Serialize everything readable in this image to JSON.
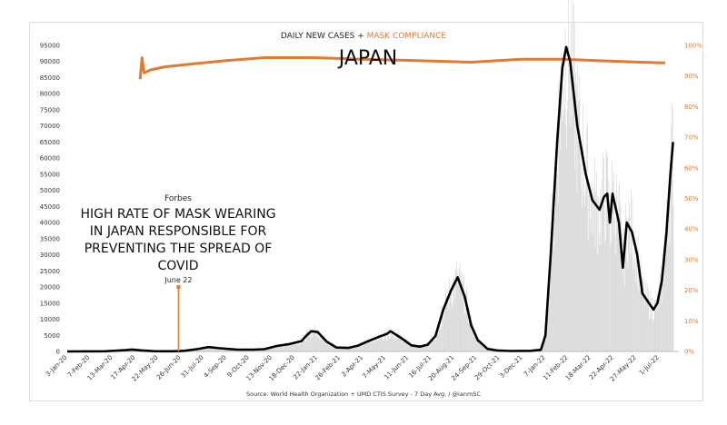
{
  "chart_data": {
    "type": "line",
    "title_main": "DAILY NEW CASES + ",
    "title_accent": "MASK COMPLIANCE",
    "country": "JAPAN",
    "source": "Source: World Health Organization + UMD CTIS Survey - 7 Day Avg. / @ianmSC",
    "left_axis": {
      "min": 0,
      "max": 95000,
      "step": 5000
    },
    "right_axis": {
      "min": 0,
      "max": 100,
      "step": 10,
      "unit": "%"
    },
    "x_axis": {
      "start": "2020-01-03",
      "end": "2022-07-31",
      "tick_labels": [
        "3-Jan-20",
        "7-Feb-20",
        "13-Mar-20",
        "17-Apr-20",
        "22-May-20",
        "26-Jun-20",
        "31-Jul-20",
        "4-Sep-20",
        "9-Oct-20",
        "13-Nov-20",
        "18-Dec-20",
        "22-Jan-21",
        "26-Feb-21",
        "2-Apr-21",
        "7-May-21",
        "11-Jun-21",
        "16-Jul-21",
        "20-Aug-21",
        "24-Sep-21",
        "29-Oct-21",
        "3-Dec-21",
        "7-Jan-22",
        "11-Feb-22",
        "18-Mar-22",
        "22-Apr-22",
        "27-May-22",
        "1-Jul-22"
      ]
    },
    "annotation": {
      "source_label": "Forbes",
      "headline_lines": [
        "HIGH RATE OF MASK WEARING",
        "IN JAPAN RESPONSIBLE FOR",
        "PREVENTING THE SPREAD OF",
        "COVID"
      ],
      "date_label": "June 22",
      "date": "2020-06-22"
    },
    "colors": {
      "cases": "#000000",
      "mask": "#e07b30",
      "bars": "#d9d9d9",
      "marker": "#e07b30",
      "axis_text": "#333333"
    },
    "series": [
      {
        "name": "DAILY NEW CASES",
        "axis": "left",
        "points": [
          [
            "2020-01-03",
            0
          ],
          [
            "2020-03-01",
            50
          ],
          [
            "2020-04-01",
            400
          ],
          [
            "2020-04-12",
            600
          ],
          [
            "2020-04-25",
            350
          ],
          [
            "2020-05-15",
            80
          ],
          [
            "2020-06-15",
            60
          ],
          [
            "2020-07-01",
            200
          ],
          [
            "2020-07-20",
            700
          ],
          [
            "2020-08-07",
            1350
          ],
          [
            "2020-08-25",
            1000
          ],
          [
            "2020-09-20",
            550
          ],
          [
            "2020-10-15",
            550
          ],
          [
            "2020-11-01",
            700
          ],
          [
            "2020-11-20",
            1700
          ],
          [
            "2020-12-10",
            2300
          ],
          [
            "2020-12-28",
            3200
          ],
          [
            "2021-01-05",
            5000
          ],
          [
            "2021-01-12",
            6300
          ],
          [
            "2021-01-22",
            6000
          ],
          [
            "2021-02-05",
            3000
          ],
          [
            "2021-02-20",
            1200
          ],
          [
            "2021-03-10",
            1100
          ],
          [
            "2021-03-25",
            1800
          ],
          [
            "2021-04-10",
            3200
          ],
          [
            "2021-04-28",
            4700
          ],
          [
            "2021-05-08",
            5400
          ],
          [
            "2021-05-14",
            6300
          ],
          [
            "2021-05-30",
            4200
          ],
          [
            "2021-06-15",
            1900
          ],
          [
            "2021-06-28",
            1500
          ],
          [
            "2021-07-10",
            2100
          ],
          [
            "2021-07-22",
            4800
          ],
          [
            "2021-08-03",
            13000
          ],
          [
            "2021-08-15",
            19000
          ],
          [
            "2021-08-25",
            23000
          ],
          [
            "2021-09-05",
            17000
          ],
          [
            "2021-09-15",
            8000
          ],
          [
            "2021-09-25",
            3500
          ],
          [
            "2021-10-10",
            800
          ],
          [
            "2021-10-25",
            300
          ],
          [
            "2021-11-15",
            150
          ],
          [
            "2021-12-15",
            200
          ],
          [
            "2021-12-31",
            500
          ],
          [
            "2022-01-07",
            5000
          ],
          [
            "2022-01-15",
            30000
          ],
          [
            "2022-01-25",
            65000
          ],
          [
            "2022-02-02",
            88000
          ],
          [
            "2022-02-08",
            94500
          ],
          [
            "2022-02-14",
            90000
          ],
          [
            "2022-02-25",
            70000
          ],
          [
            "2022-03-10",
            55000
          ],
          [
            "2022-03-20",
            47000
          ],
          [
            "2022-03-31",
            44000
          ],
          [
            "2022-04-07",
            48000
          ],
          [
            "2022-04-12",
            49000
          ],
          [
            "2022-04-16",
            40000
          ],
          [
            "2022-04-20",
            49000
          ],
          [
            "2022-04-30",
            40000
          ],
          [
            "2022-05-06",
            26000
          ],
          [
            "2022-05-12",
            40000
          ],
          [
            "2022-05-20",
            37000
          ],
          [
            "2022-05-28",
            30000
          ],
          [
            "2022-06-05",
            18000
          ],
          [
            "2022-06-15",
            15000
          ],
          [
            "2022-06-22",
            13000
          ],
          [
            "2022-06-28",
            15000
          ],
          [
            "2022-07-05",
            22000
          ],
          [
            "2022-07-12",
            37000
          ],
          [
            "2022-07-18",
            55000
          ],
          [
            "2022-07-22",
            65000
          ]
        ]
      },
      {
        "name": "MASK COMPLIANCE",
        "axis": "right",
        "points": [
          [
            "2020-04-24",
            89
          ],
          [
            "2020-04-27",
            96
          ],
          [
            "2020-04-30",
            91
          ],
          [
            "2020-05-10",
            92
          ],
          [
            "2020-06-01",
            93
          ],
          [
            "2020-07-15",
            94
          ],
          [
            "2020-09-01",
            95
          ],
          [
            "2020-11-01",
            96
          ],
          [
            "2021-01-15",
            96
          ],
          [
            "2021-04-01",
            95.5
          ],
          [
            "2021-07-01",
            95
          ],
          [
            "2021-09-15",
            94.5
          ],
          [
            "2021-12-01",
            95.5
          ],
          [
            "2022-02-01",
            95.5
          ],
          [
            "2022-04-01",
            95
          ],
          [
            "2022-06-01",
            94.5
          ],
          [
            "2022-07-10",
            94.3
          ]
        ]
      }
    ]
  }
}
